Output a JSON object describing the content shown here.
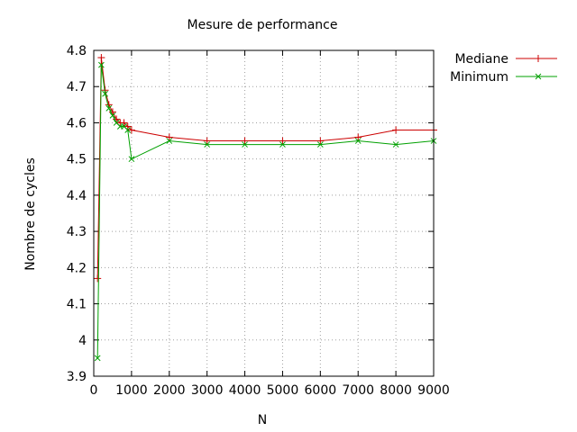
{
  "chart_data": {
    "type": "line",
    "title": "Mesure de performance",
    "xlabel": "N",
    "ylabel": "Nombre de cycles",
    "xlim": [
      0,
      9000
    ],
    "ylim": [
      3.9,
      4.8
    ],
    "x_ticks": [
      0,
      1000,
      2000,
      3000,
      4000,
      5000,
      6000,
      7000,
      8000,
      9000
    ],
    "x_tick_labels": [
      "0",
      "1000",
      "2000",
      "3000",
      "4000",
      "5000",
      "6000",
      "7000",
      "8000",
      "9000"
    ],
    "y_ticks": [
      3.9,
      4.0,
      4.1,
      4.2,
      4.3,
      4.4,
      4.5,
      4.6,
      4.7,
      4.8
    ],
    "y_tick_labels": [
      "3.9",
      "4",
      "4.1",
      "4.2",
      "4.3",
      "4.4",
      "4.5",
      "4.6",
      "4.7",
      "4.8"
    ],
    "grid": true,
    "legend_position": "top-right outside",
    "series": [
      {
        "name": "Mediane",
        "color": "#cc0000",
        "marker": "plus",
        "points": [
          [
            100,
            4.17
          ],
          [
            200,
            4.78
          ],
          [
            300,
            4.69
          ],
          [
            400,
            4.65
          ],
          [
            500,
            4.63
          ],
          [
            600,
            4.61
          ],
          [
            700,
            4.6
          ],
          [
            800,
            4.6
          ],
          [
            900,
            4.59
          ],
          [
            1000,
            4.58
          ],
          [
            2000,
            4.56
          ],
          [
            3000,
            4.55
          ],
          [
            4000,
            4.55
          ],
          [
            5000,
            4.55
          ],
          [
            6000,
            4.55
          ],
          [
            7000,
            4.56
          ],
          [
            8000,
            4.58
          ],
          [
            9000,
            4.58
          ]
        ]
      },
      {
        "name": "Minimum",
        "color": "#00a000",
        "marker": "cross",
        "points": [
          [
            100,
            3.95
          ],
          [
            200,
            4.76
          ],
          [
            300,
            4.68
          ],
          [
            400,
            4.64
          ],
          [
            500,
            4.62
          ],
          [
            600,
            4.6
          ],
          [
            700,
            4.59
          ],
          [
            800,
            4.59
          ],
          [
            900,
            4.58
          ],
          [
            1000,
            4.5
          ],
          [
            2000,
            4.55
          ],
          [
            3000,
            4.54
          ],
          [
            4000,
            4.54
          ],
          [
            5000,
            4.54
          ],
          [
            6000,
            4.54
          ],
          [
            7000,
            4.55
          ],
          [
            8000,
            4.54
          ],
          [
            9000,
            4.55
          ]
        ]
      }
    ]
  }
}
